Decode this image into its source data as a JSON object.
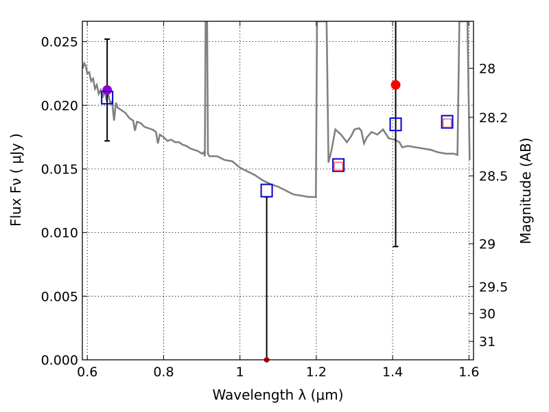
{
  "chart_data": {
    "type": "scatter",
    "xlabel": "Wavelength  λ (μm)",
    "ylabel": "Flux  Fν  ( μJy )",
    "y2label": "Magnitude (AB)",
    "xlim": [
      0.587,
      1.612
    ],
    "ylim": [
      0.0,
      0.0266
    ],
    "grid": true,
    "x_ticks": [
      {
        "v": 0.6,
        "label": "0.6"
      },
      {
        "v": 0.8,
        "label": "0.8"
      },
      {
        "v": 1.0,
        "label": "1"
      },
      {
        "v": 1.2,
        "label": "1.2"
      },
      {
        "v": 1.4,
        "label": "1.4"
      },
      {
        "v": 1.6,
        "label": "1.6"
      }
    ],
    "y_ticks": [
      {
        "v": 0.0,
        "label": "0.000"
      },
      {
        "v": 0.005,
        "label": "0.005"
      },
      {
        "v": 0.01,
        "label": "0.010"
      },
      {
        "v": 0.015,
        "label": "0.015"
      },
      {
        "v": 0.02,
        "label": "0.020"
      },
      {
        "v": 0.025,
        "label": "0.025"
      }
    ],
    "mag_ticks": [
      {
        "mag": 28.0,
        "label": "28"
      },
      {
        "mag": 28.2,
        "label": "28.2"
      },
      {
        "mag": 28.5,
        "label": "28.5"
      },
      {
        "mag": 29.0,
        "label": "29"
      },
      {
        "mag": 29.5,
        "label": "29.5"
      },
      {
        "mag": 30.0,
        "label": "30"
      },
      {
        "mag": 31.0,
        "label": "31"
      }
    ],
    "sed_color": "#808080",
    "sed_model": [
      [
        0.588,
        0.0229
      ],
      [
        0.592,
        0.0233
      ],
      [
        0.596,
        0.0231
      ],
      [
        0.6,
        0.0225
      ],
      [
        0.605,
        0.0226
      ],
      [
        0.61,
        0.0219
      ],
      [
        0.615,
        0.0221
      ],
      [
        0.62,
        0.0213
      ],
      [
        0.625,
        0.0216
      ],
      [
        0.63,
        0.0209
      ],
      [
        0.635,
        0.0212
      ],
      [
        0.64,
        0.0206
      ],
      [
        0.645,
        0.0212
      ],
      [
        0.65,
        0.0205
      ],
      [
        0.655,
        0.0209
      ],
      [
        0.66,
        0.0202
      ],
      [
        0.665,
        0.0203
      ],
      [
        0.67,
        0.0188
      ],
      [
        0.675,
        0.0202
      ],
      [
        0.68,
        0.0198
      ],
      [
        0.69,
        0.0196
      ],
      [
        0.7,
        0.0194
      ],
      [
        0.71,
        0.019
      ],
      [
        0.72,
        0.0188
      ],
      [
        0.725,
        0.018
      ],
      [
        0.73,
        0.0187
      ],
      [
        0.74,
        0.0186
      ],
      [
        0.75,
        0.0183
      ],
      [
        0.76,
        0.0182
      ],
      [
        0.77,
        0.0181
      ],
      [
        0.78,
        0.0179
      ],
      [
        0.785,
        0.017
      ],
      [
        0.79,
        0.0177
      ],
      [
        0.8,
        0.0175
      ],
      [
        0.81,
        0.0172
      ],
      [
        0.82,
        0.0173
      ],
      [
        0.83,
        0.0171
      ],
      [
        0.84,
        0.0171
      ],
      [
        0.85,
        0.0169
      ],
      [
        0.86,
        0.0168
      ],
      [
        0.87,
        0.0166
      ],
      [
        0.88,
        0.0165
      ],
      [
        0.89,
        0.0164
      ],
      [
        0.9,
        0.0162
      ],
      [
        0.905,
        0.0163
      ],
      [
        0.908,
        0.016
      ],
      [
        0.91,
        0.0266
      ],
      [
        0.914,
        0.0266
      ],
      [
        0.916,
        0.0162
      ],
      [
        0.92,
        0.016
      ],
      [
        0.94,
        0.016
      ],
      [
        0.96,
        0.0157
      ],
      [
        0.98,
        0.0156
      ],
      [
        1.0,
        0.0151
      ],
      [
        1.02,
        0.0148
      ],
      [
        1.04,
        0.0145
      ],
      [
        1.06,
        0.0141
      ],
      [
        1.08,
        0.0138
      ],
      [
        1.1,
        0.0136
      ],
      [
        1.12,
        0.0133
      ],
      [
        1.14,
        0.013
      ],
      [
        1.16,
        0.0129
      ],
      [
        1.18,
        0.0128
      ],
      [
        1.199,
        0.0128
      ],
      [
        1.202,
        0.0266
      ],
      [
        1.227,
        0.0266
      ],
      [
        1.232,
        0.0155
      ],
      [
        1.24,
        0.0165
      ],
      [
        1.25,
        0.0181
      ],
      [
        1.265,
        0.0177
      ],
      [
        1.28,
        0.0171
      ],
      [
        1.292,
        0.0176
      ],
      [
        1.3,
        0.0181
      ],
      [
        1.312,
        0.0182
      ],
      [
        1.318,
        0.018
      ],
      [
        1.325,
        0.017
      ],
      [
        1.333,
        0.0175
      ],
      [
        1.345,
        0.0179
      ],
      [
        1.36,
        0.0177
      ],
      [
        1.375,
        0.0181
      ],
      [
        1.39,
        0.0174
      ],
      [
        1.405,
        0.0173
      ],
      [
        1.418,
        0.0171
      ],
      [
        1.425,
        0.0167
      ],
      [
        1.44,
        0.0168
      ],
      [
        1.46,
        0.0167
      ],
      [
        1.48,
        0.0166
      ],
      [
        1.5,
        0.0165
      ],
      [
        1.52,
        0.0163
      ],
      [
        1.54,
        0.0162
      ],
      [
        1.56,
        0.0162
      ],
      [
        1.57,
        0.0161
      ],
      [
        1.575,
        0.0266
      ],
      [
        1.596,
        0.0266
      ],
      [
        1.602,
        0.0157
      ]
    ],
    "model_points": [
      {
        "x": 0.652,
        "y": 0.0206
      },
      {
        "x": 1.07,
        "y": 0.0133
      },
      {
        "x": 1.258,
        "y": 0.0153
      },
      {
        "x": 1.408,
        "y": 0.0185
      },
      {
        "x": 1.543,
        "y": 0.0187
      }
    ],
    "model_point_color": "#0000cc",
    "observed_points": [
      {
        "x": 0.652,
        "y": 0.0212,
        "yerr_low": 0.0172,
        "yerr_high": 0.0252,
        "color": "#9400d3",
        "shape": "circle"
      },
      {
        "x": 1.07,
        "y": 0.0,
        "yerr_low": 0.0,
        "yerr_high": 0.0128,
        "color": "#cc0000",
        "shape": "circle"
      },
      {
        "x": 1.258,
        "y": 0.0152,
        "color": "#ff4040",
        "shape": "square"
      },
      {
        "x": 1.408,
        "y": 0.0216,
        "yerr_low": 0.0089,
        "yerr_high": 0.0266,
        "color": "#ff0000",
        "shape": "circle"
      },
      {
        "x": 1.543,
        "y": 0.0186,
        "color": "#ff4040",
        "shape": "square"
      }
    ]
  }
}
